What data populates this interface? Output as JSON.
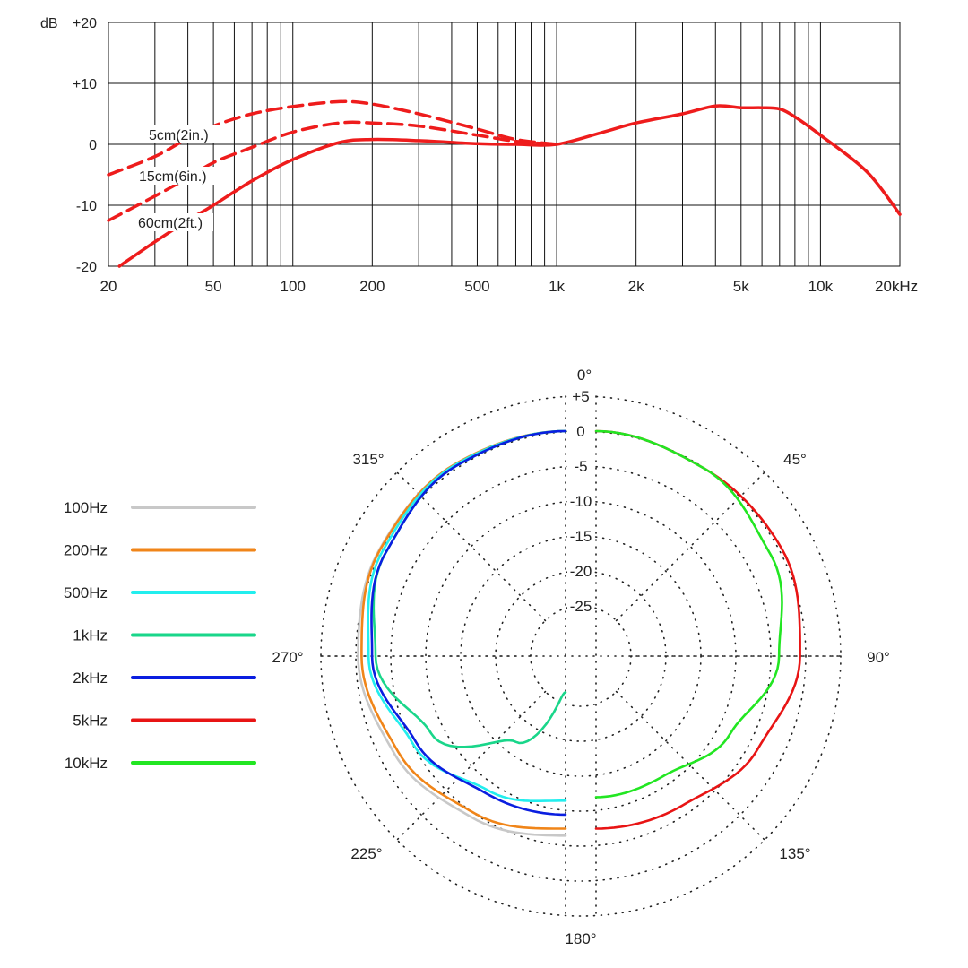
{
  "chart_data": [
    {
      "type": "line",
      "title": "",
      "x_scale": "log",
      "xlim": [
        20,
        20000
      ],
      "ylim": [
        -20,
        20
      ],
      "grid": true,
      "y_unit_label": "dB",
      "xlabel": "",
      "ylabel": "",
      "y_ticks": [
        20,
        10,
        0,
        -10,
        -20
      ],
      "y_tick_labels": [
        "+20",
        "+10",
        "0",
        "-10",
        "-20"
      ],
      "x_ticks": [
        20,
        50,
        100,
        200,
        500,
        1000,
        2000,
        5000,
        10000,
        20000
      ],
      "x_tick_labels": [
        "20",
        "50",
        "100",
        "200",
        "500",
        "1k",
        "2k",
        "5k",
        "10k",
        "20kHz"
      ],
      "series": [
        {
          "name": "5cm(2in.)",
          "color": "#ee1c1c",
          "style": "dashed",
          "x": [
            20,
            30,
            40,
            50,
            70,
            100,
            150,
            200,
            300,
            500,
            700,
            1000
          ],
          "y": [
            -5,
            -2,
            1,
            3,
            5,
            6.2,
            7,
            6.6,
            5,
            2.5,
            0.8,
            0
          ]
        },
        {
          "name": "15cm(6in.)",
          "color": "#ee1c1c",
          "style": "dashed",
          "x": [
            20,
            30,
            40,
            50,
            70,
            100,
            150,
            200,
            300,
            500,
            700,
            1000
          ],
          "y": [
            -12.5,
            -8.5,
            -5.5,
            -3,
            -0.5,
            2,
            3.5,
            3.5,
            3,
            1.5,
            0.5,
            0
          ]
        },
        {
          "name": "60cm(2ft.)",
          "color": "#ee1c1c",
          "style": "solid",
          "x": [
            22,
            30,
            40,
            50,
            70,
            100,
            150,
            200,
            300,
            500,
            700,
            1000,
            1500,
            2000,
            3000,
            4000,
            5000,
            6000,
            7000,
            8000,
            10000,
            15000,
            20000
          ],
          "y": [
            -20,
            -16,
            -12.5,
            -10,
            -6,
            -2.5,
            0.3,
            0.8,
            0.6,
            0.1,
            0,
            0,
            2,
            3.5,
            5,
            6.3,
            6,
            6,
            5.8,
            4.5,
            1.5,
            -4.5,
            -11.5
          ]
        }
      ]
    },
    {
      "type": "polar",
      "title": "",
      "r_ticks": [
        5,
        0,
        -5,
        -10,
        -15,
        -20,
        -25
      ],
      "r_tick_labels": [
        "+5",
        "0",
        "-5",
        "-10",
        "-15",
        "-20",
        "-25"
      ],
      "rlim": [
        -30,
        5
      ],
      "angle_ticks": [
        0,
        45,
        90,
        135,
        180,
        225,
        270,
        315
      ],
      "angle_labels": [
        "0°",
        "45°",
        "90°",
        "135°",
        "180°",
        "225°",
        "270°",
        "315°"
      ],
      "grid": true,
      "legend_position": "left",
      "series": [
        {
          "name": "100Hz",
          "color": "#c8c8c8",
          "side": "left",
          "angle": [
            0,
            30,
            60,
            90,
            120,
            150,
            180
          ],
          "db": [
            0,
            -0.5,
            -1.5,
            -2.5,
            -4,
            -5.5,
            -6.5
          ]
        },
        {
          "name": "200Hz",
          "color": "#f08519",
          "side": "left",
          "angle": [
            0,
            30,
            60,
            90,
            120,
            150,
            180
          ],
          "db": [
            0,
            -0.5,
            -1.6,
            -3,
            -4.6,
            -6.2,
            -7.5
          ]
        },
        {
          "name": "500Hz",
          "color": "#22eeee",
          "side": "left",
          "angle": [
            0,
            30,
            60,
            90,
            120,
            150,
            180
          ],
          "db": [
            0,
            -0.6,
            -2,
            -4,
            -7,
            -10,
            -11.5
          ]
        },
        {
          "name": "1kHz",
          "color": "#19d68a",
          "side": "left",
          "angle": [
            0,
            30,
            60,
            90,
            120,
            150,
            180
          ],
          "db": [
            0,
            -0.8,
            -2.5,
            -5,
            -10,
            -18,
            -27
          ]
        },
        {
          "name": "2kHz",
          "color": "#0a1ee0",
          "side": "left",
          "angle": [
            0,
            30,
            60,
            90,
            120,
            150,
            180
          ],
          "db": [
            0,
            -0.8,
            -2.5,
            -4.5,
            -7.5,
            -9.5,
            -9.5
          ]
        },
        {
          "name": "5kHz",
          "color": "#e81414",
          "side": "right",
          "angle": [
            0,
            30,
            60,
            90,
            120,
            150,
            180
          ],
          "db": [
            0,
            -1.2,
            -1.5,
            -3,
            -5.5,
            -7.5,
            -7.5
          ]
        },
        {
          "name": "10kHz",
          "color": "#22e622",
          "side": "right",
          "angle": [
            0,
            30,
            60,
            90,
            120,
            150,
            180
          ],
          "db": [
            0,
            -1.2,
            -3.3,
            -6,
            -10,
            -12.5,
            -12
          ]
        }
      ]
    }
  ]
}
